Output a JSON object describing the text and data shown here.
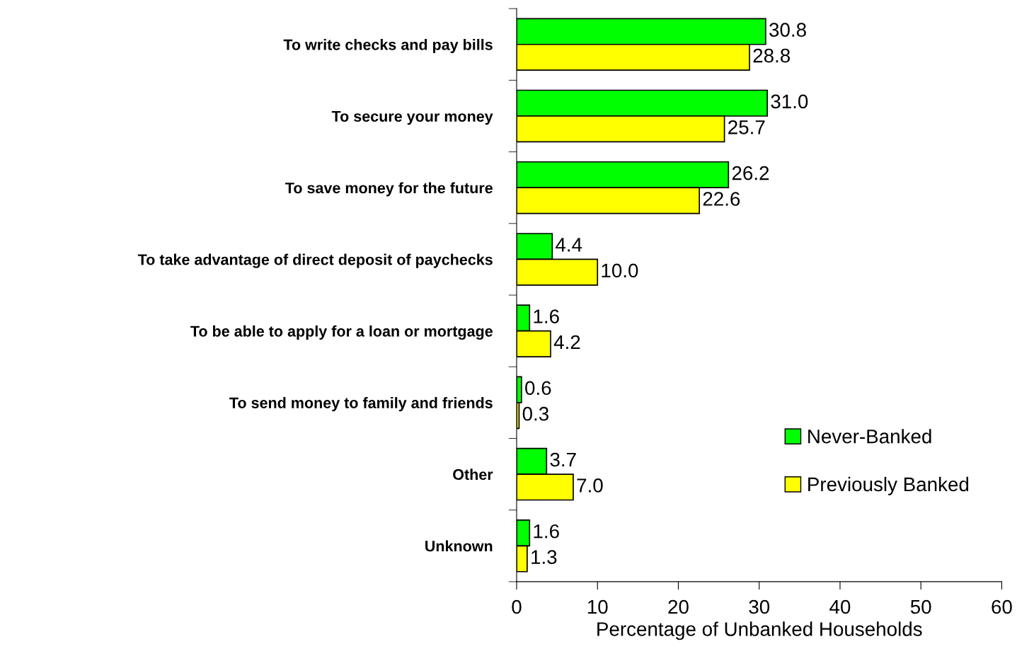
{
  "chart_data": {
    "type": "bar",
    "orientation": "horizontal",
    "xlabel": "Percentage of Unbanked Households",
    "categories": [
      "To write checks and pay bills",
      "To secure your money",
      "To save money for the future",
      "To take advantage of direct deposit of paychecks",
      "To be able to apply for a loan or mortgage",
      "To send money to family and friends",
      "Other",
      "Unknown"
    ],
    "series": [
      {
        "name": "Never-Banked",
        "color": "#00ff00",
        "values": [
          30.8,
          31.0,
          26.2,
          4.4,
          1.6,
          0.6,
          3.7,
          1.6
        ],
        "value_labels": [
          "30.8",
          "31.0",
          "26.2",
          "4.4",
          "1.6",
          "0.6",
          "3.7",
          "1.6"
        ]
      },
      {
        "name": "Previously Banked",
        "color": "#ffff00",
        "values": [
          28.8,
          25.7,
          22.6,
          10.0,
          4.2,
          0.3,
          7.0,
          1.3
        ],
        "value_labels": [
          "28.8",
          "25.7",
          "22.6",
          "10.0",
          "4.2",
          "0.3",
          "7.0",
          "1.3"
        ]
      }
    ],
    "xlim": [
      0,
      60
    ],
    "xticks": [
      0,
      10,
      20,
      30,
      40,
      50,
      60
    ],
    "grid": false,
    "legend": "bottom right"
  }
}
